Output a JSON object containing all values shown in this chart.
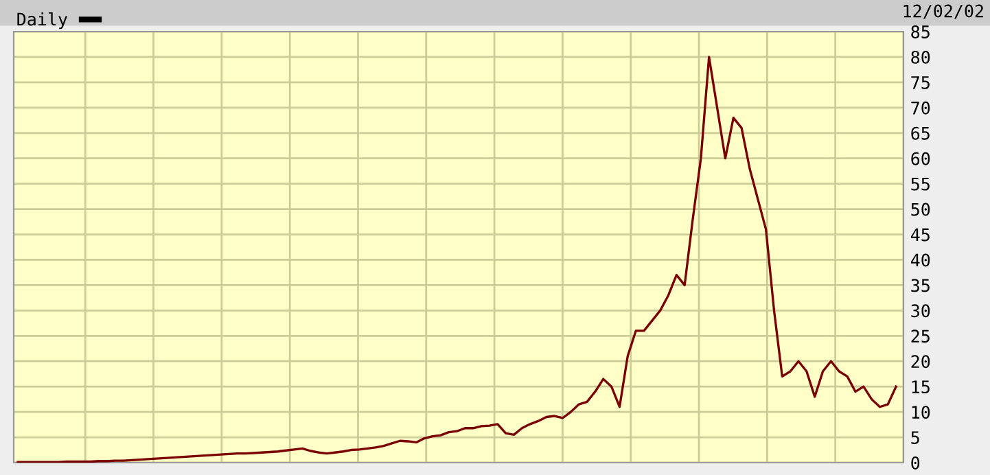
{
  "chart_data": {
    "type": "line",
    "categories": [
      null,
      null,
      null,
      null,
      null,
      null,
      null,
      null,
      null,
      null,
      null,
      null,
      null,
      null,
      null,
      null,
      null,
      null,
      null,
      null,
      null,
      null,
      null,
      null,
      null,
      null,
      null,
      null,
      null,
      null,
      null,
      null,
      null,
      null,
      null,
      null,
      null,
      null,
      null,
      null,
      null,
      null,
      null,
      null,
      null,
      null,
      null,
      null,
      null,
      null,
      null,
      null,
      null,
      null,
      null,
      null,
      null,
      null,
      null,
      null,
      null,
      null,
      null,
      null,
      null,
      null,
      null,
      null,
      null,
      null,
      null,
      null,
      null,
      null,
      null,
      null,
      null,
      null,
      null,
      null,
      null,
      null,
      null,
      null,
      null,
      null,
      null,
      null,
      null,
      null,
      null,
      null,
      null,
      null,
      null,
      null,
      null,
      null,
      null,
      null,
      null,
      null,
      null,
      null,
      null,
      null,
      null,
      null,
      null
    ],
    "series": [
      {
        "name": "Daily",
        "color": "#7a0000",
        "values": [
          0.1,
          0.1,
          0.1,
          0.1,
          0.1,
          0.1,
          0.2,
          0.2,
          0.2,
          0.2,
          0.3,
          0.3,
          0.4,
          0.4,
          0.5,
          0.6,
          0.7,
          0.8,
          0.9,
          1.0,
          1.1,
          1.2,
          1.3,
          1.4,
          1.5,
          1.6,
          1.7,
          1.8,
          1.8,
          1.9,
          2.0,
          2.1,
          2.2,
          2.4,
          2.6,
          2.8,
          2.3,
          2.0,
          1.8,
          2.0,
          2.2,
          2.5,
          2.6,
          2.8,
          3.0,
          3.3,
          3.8,
          4.3,
          4.2,
          4.0,
          4.8,
          5.2,
          5.4,
          6.0,
          6.2,
          6.8,
          6.8,
          7.2,
          7.3,
          7.6,
          5.8,
          5.5,
          6.8,
          7.6,
          8.2,
          9.0,
          9.2,
          8.8,
          10.0,
          11.5,
          12.0,
          14.0,
          16.5,
          15.0,
          11.0,
          21.0,
          26.0,
          26.0,
          28.0,
          30.0,
          33.0,
          37.0,
          35.0,
          48.0,
          60.0,
          80.0,
          70.0,
          60.0,
          68.0,
          66.0,
          58.0,
          52.0,
          46.0,
          30.0,
          17.0,
          18.0,
          20.0,
          18.0,
          13.0,
          18.0,
          20.0,
          18.0,
          17.0,
          14.0,
          15.0,
          12.5,
          11.0,
          11.5,
          15.0
        ]
      }
    ],
    "ylim": [
      0,
      85
    ],
    "yticks": [
      0,
      5,
      10,
      15,
      20,
      25,
      30,
      35,
      40,
      45,
      50,
      55,
      60,
      65,
      70,
      75,
      80,
      85
    ],
    "grid": true,
    "legend": "top left",
    "tick_labels": "y",
    "annotations": [
      "12/02/02"
    ]
  }
}
